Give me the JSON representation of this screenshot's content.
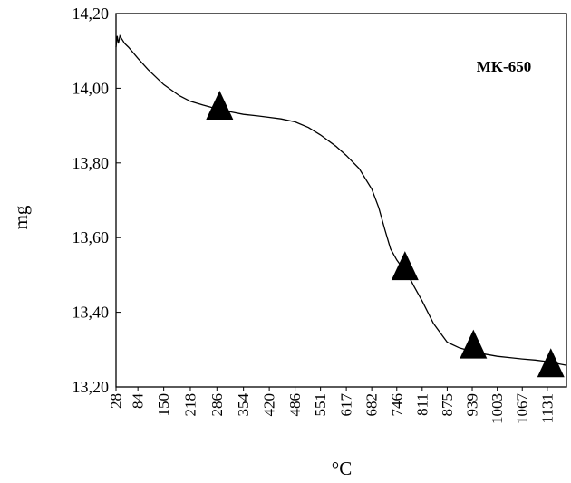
{
  "chart_data": {
    "type": "line",
    "title": "",
    "xlabel": "°C",
    "ylabel": "mg",
    "annotation": "MK-650",
    "ylim": [
      13.2,
      14.2
    ],
    "y_ticks": [
      "14,20",
      "14,00",
      "13,80",
      "13,60",
      "13,40",
      "13,20"
    ],
    "y_tick_values": [
      14.2,
      14.0,
      13.8,
      13.6,
      13.4,
      13.2
    ],
    "x_ticks": [
      "28",
      "84",
      "150",
      "218",
      "286",
      "354",
      "420",
      "486",
      "551",
      "617",
      "682",
      "746",
      "811",
      "875",
      "939",
      "1003",
      "1067",
      "1131"
    ],
    "x_tick_values": [
      28,
      84,
      150,
      218,
      286,
      354,
      420,
      486,
      551,
      617,
      682,
      746,
      811,
      875,
      939,
      1003,
      1067,
      1131
    ],
    "xlim": [
      28,
      1180
    ],
    "grid": false,
    "series": [
      {
        "x": [
          28,
          31,
          34,
          38,
          44,
          50,
          60,
          84,
          110,
          150,
          190,
          218,
          250,
          286,
          320,
          354,
          390,
          420,
          450,
          486,
          520,
          551,
          590,
          617,
          650,
          682,
          700,
          716,
          730,
          746,
          760,
          775,
          790,
          811,
          840,
          875,
          905,
          939,
          970,
          1003,
          1040,
          1067,
          1100,
          1131,
          1160,
          1180
        ],
        "y": [
          14.11,
          14.14,
          14.12,
          14.14,
          14.13,
          14.12,
          14.11,
          14.08,
          14.05,
          14.01,
          13.98,
          13.965,
          13.955,
          13.945,
          13.937,
          13.93,
          13.926,
          13.922,
          13.918,
          13.91,
          13.895,
          13.875,
          13.845,
          13.82,
          13.785,
          13.73,
          13.68,
          13.62,
          13.57,
          13.54,
          13.52,
          13.5,
          13.47,
          13.43,
          13.37,
          13.32,
          13.305,
          13.295,
          13.288,
          13.282,
          13.278,
          13.275,
          13.272,
          13.268,
          13.262,
          13.258
        ]
      }
    ],
    "markers": {
      "shape": "triangle",
      "x": [
        293,
        767,
        942,
        1140
      ],
      "y": [
        13.955,
        13.525,
        13.315,
        13.265
      ]
    }
  }
}
